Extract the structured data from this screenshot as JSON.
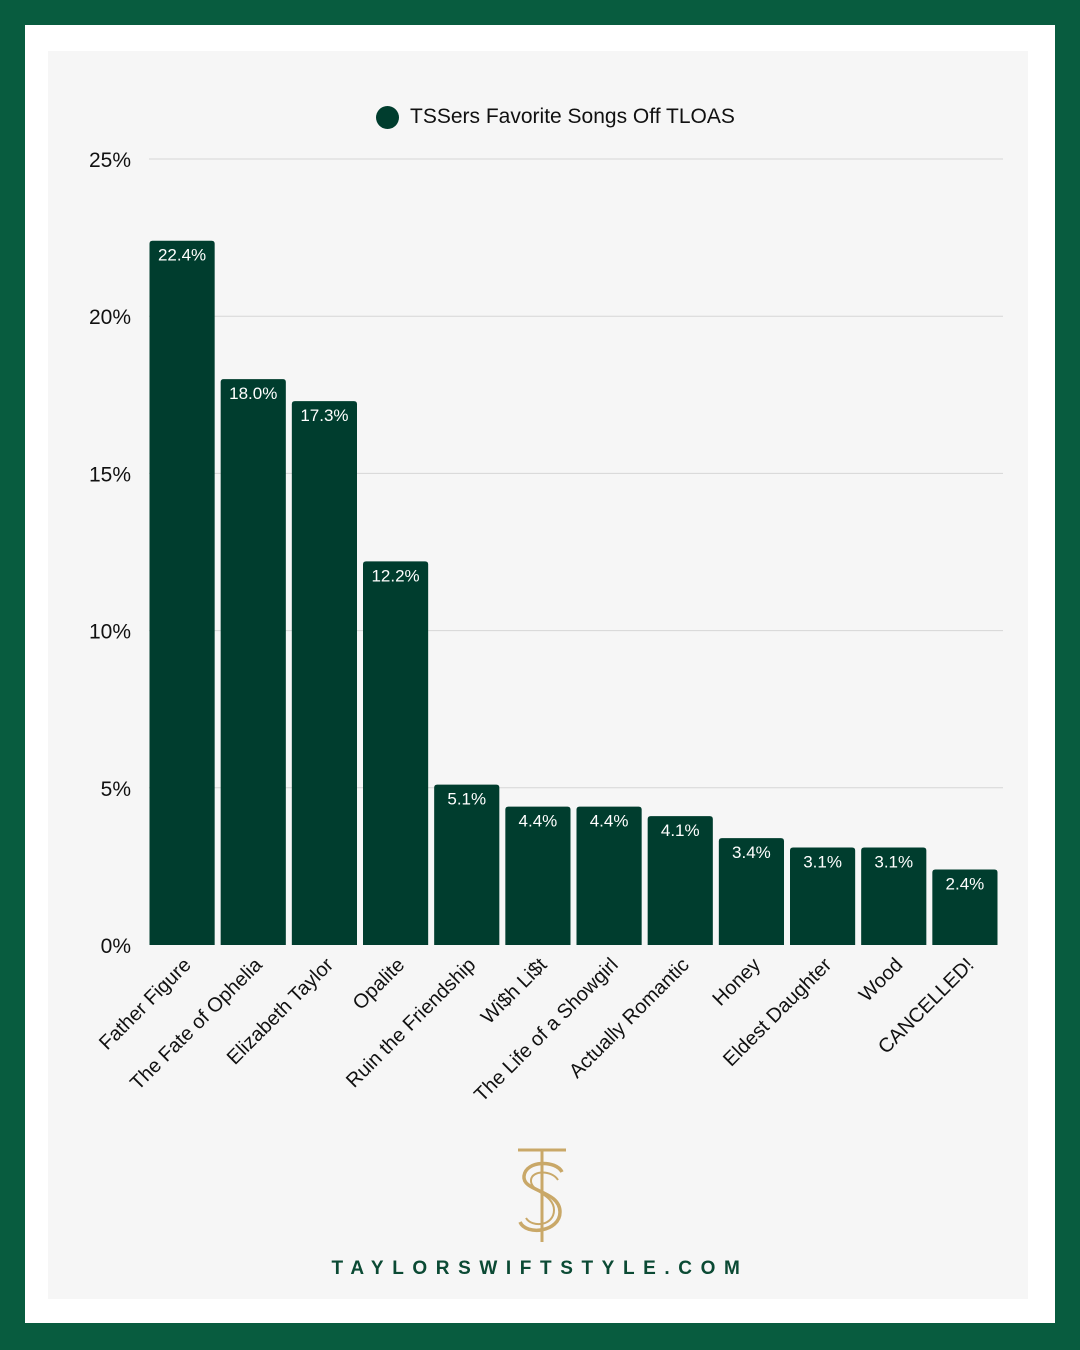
{
  "colors": {
    "bar": "#003d2e",
    "frame": "#085c3f",
    "panel": "#f6f6f6",
    "gold": "#c9a868"
  },
  "logo": {
    "name": "ts-monogram-logo",
    "text": "TS"
  },
  "site": {
    "url": "TAYLORSWIFTSTYLE.COM"
  },
  "chart_data": {
    "type": "bar",
    "title": "",
    "legend": "TSSers Favorite Songs Off TLOAS",
    "xlabel": "",
    "ylabel": "",
    "ylim": [
      0,
      25
    ],
    "yticks": [
      "0%",
      "5%",
      "10%",
      "15%",
      "20%",
      "25%"
    ],
    "ytick_values": [
      0,
      5,
      10,
      15,
      20,
      25
    ],
    "grid": true,
    "categories": [
      "Father Figure",
      "The Fate of Ophelia",
      "Elizabeth Taylor",
      "Opalite",
      "Ruin the Friendship",
      "Wi$h Li$t",
      "The Life of a Showgirl",
      "Actually Romantic",
      "Honey",
      "Eldest Daughter",
      "Wood",
      "CANCELLED!"
    ],
    "values": [
      22.4,
      18.0,
      17.3,
      12.2,
      5.1,
      4.4,
      4.4,
      4.1,
      3.4,
      3.1,
      3.1,
      2.4
    ],
    "value_labels": [
      "22.4%",
      "18.0%",
      "17.3%",
      "12.2%",
      "5.1%",
      "4.4%",
      "4.4%",
      "4.1%",
      "3.4%",
      "3.1%",
      "3.1%",
      "2.4%"
    ]
  }
}
